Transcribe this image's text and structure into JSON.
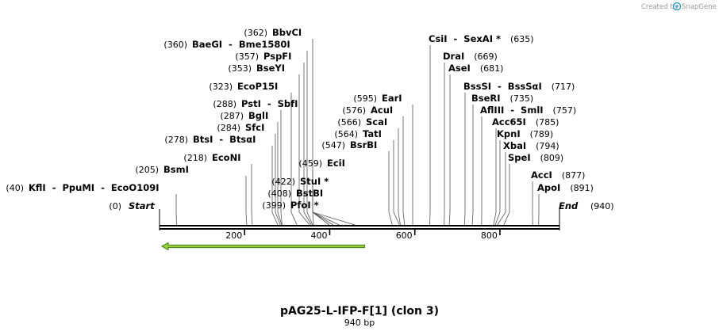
{
  "credit": {
    "prefix": "Created by",
    "brand": "SnapGene",
    "brand_color": "#2196c9"
  },
  "sequence": {
    "name": "pAG25-L-IFP-F[1] (clon 3)",
    "length_label": "940 bp",
    "length": 940,
    "start_label": "Start",
    "start_pos": "(0)",
    "end_label": "End",
    "end_pos": "(940)",
    "ticks": [
      "200",
      "400",
      "600",
      "800"
    ],
    "tick_values": [
      200,
      400,
      600,
      800
    ]
  },
  "feature": {
    "name": "feature-arrow",
    "from": 0,
    "to": 482,
    "direction": "reverse",
    "color": "#9ccf3c",
    "outline": "#3c7d12"
  },
  "sites": [
    {
      "pos_label": "(40)",
      "name": "KflI  -  PpuMI  -  EcoO109I",
      "pos": 40
    },
    {
      "pos_label": "(205)",
      "name": "BsmI",
      "pos": 205
    },
    {
      "pos_label": "(218)",
      "name": "EcoNI",
      "pos": 218
    },
    {
      "pos_label": "(278)",
      "name": "BtsI  -  BtsαI",
      "pos": 278
    },
    {
      "pos_label": "(284)",
      "name": "SfcI",
      "pos": 284
    },
    {
      "pos_label": "(287)",
      "name": "BglI",
      "pos": 287
    },
    {
      "pos_label": "(288)",
      "name": "PstI  -  SbfI",
      "pos": 288
    },
    {
      "pos_label": "(323)",
      "name": "EcoP15I",
      "pos": 323
    },
    {
      "pos_label": "(353)",
      "name": "BseYI",
      "pos": 353
    },
    {
      "pos_label": "(357)",
      "name": "PspFI",
      "pos": 357
    },
    {
      "pos_label": "(360)",
      "name": "BaeGI  -  Bme1580I",
      "pos": 360
    },
    {
      "pos_label": "(362)",
      "name": "BbvCI",
      "pos": 362
    },
    {
      "pos_label": "(399)",
      "name": "PfoI *",
      "pos": 399
    },
    {
      "pos_label": "(408)",
      "name": "BstBI",
      "pos": 408
    },
    {
      "pos_label": "(422)",
      "name": "StuI *",
      "pos": 422
    },
    {
      "pos_label": "(459)",
      "name": "EciI",
      "pos": 459
    },
    {
      "pos_label": "(547)",
      "name": "BsrBI",
      "pos": 547
    },
    {
      "pos_label": "(564)",
      "name": "TatI",
      "pos": 564
    },
    {
      "pos_label": "(566)",
      "name": "ScaI",
      "pos": 566
    },
    {
      "pos_label": "(576)",
      "name": "AcuI",
      "pos": 576
    },
    {
      "pos_label": "(595)",
      "name": "EarI",
      "pos": 595
    },
    {
      "pos_label": "(635)",
      "name": "CsiI  -  SexAI *",
      "pos": 635
    },
    {
      "pos_label": "(669)",
      "name": "DraI",
      "pos": 669
    },
    {
      "pos_label": "(681)",
      "name": "AseI",
      "pos": 681
    },
    {
      "pos_label": "(717)",
      "name": "BssSI  -  BssSαI",
      "pos": 717
    },
    {
      "pos_label": "(735)",
      "name": "BseRI",
      "pos": 735
    },
    {
      "pos_label": "(757)",
      "name": "AflIII  -  SmlI",
      "pos": 757
    },
    {
      "pos_label": "(785)",
      "name": "Acc65I",
      "pos": 785
    },
    {
      "pos_label": "(789)",
      "name": "KpnI",
      "pos": 789
    },
    {
      "pos_label": "(794)",
      "name": "XbaI",
      "pos": 794
    },
    {
      "pos_label": "(809)",
      "name": "SpeI",
      "pos": 809
    },
    {
      "pos_label": "(877)",
      "name": "AccI",
      "pos": 877
    },
    {
      "pos_label": "(891)",
      "name": "ApoI",
      "pos": 891
    }
  ]
}
